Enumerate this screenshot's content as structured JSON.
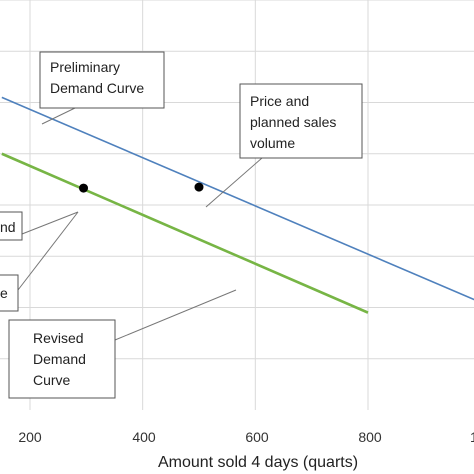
{
  "chart_data": {
    "type": "line",
    "xlabel": "Amount sold 4 days (quarts)",
    "x_ticks": [
      "200",
      "400",
      "600",
      "800",
      "1"
    ],
    "xlim": [
      150,
      1000
    ],
    "ylim": [
      0,
      8
    ],
    "grid": true,
    "series": [
      {
        "color": "#4f81bd",
        "x": [
          150,
          1000
        ],
        "y": [
          6.1,
          2.1
        ]
      },
      {
        "color": "#77b545",
        "x": [
          150,
          800
        ],
        "y": [
          5.0,
          1.9
        ]
      }
    ],
    "points": [
      {
        "x": 295,
        "y": 4.33
      },
      {
        "x": 500,
        "y": 4.35
      }
    ],
    "annotations": [
      {
        "id": "preliminary",
        "lines": [
          "Preliminary",
          "Demand Curve"
        ]
      },
      {
        "id": "price",
        "lines": [
          "Price and",
          "planned sales",
          "volume"
        ]
      },
      {
        "id": "revised",
        "lines": [
          "Revised",
          "Demand",
          "Curve"
        ]
      },
      {
        "id": "left1",
        "lines": [
          "nd"
        ]
      },
      {
        "id": "left2",
        "lines": [
          "e"
        ]
      }
    ]
  }
}
